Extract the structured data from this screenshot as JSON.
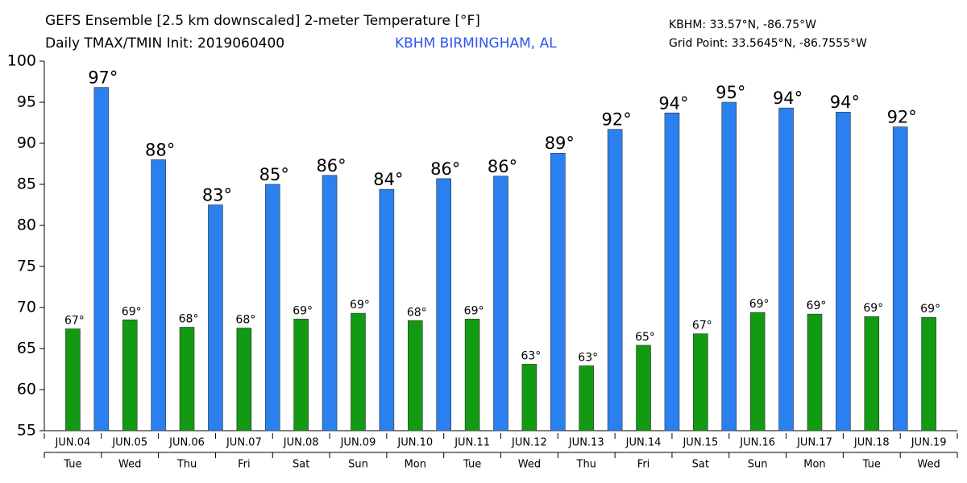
{
  "chart_data": {
    "type": "bar",
    "title": "GEFS Ensemble [2.5 km downscaled] 2-meter Temperature [°F]",
    "subtitle": "Daily TMAX/TMIN Init: 2019060400",
    "location": "KBHM BIRMINGHAM, AL",
    "annotations": [
      "KBHM: 33.57°N, -86.75°W",
      "Grid Point: 33.5645°N, -86.7555°W"
    ],
    "categories": [
      "JUN.04",
      "JUN.05",
      "JUN.06",
      "JUN.07",
      "JUN.08",
      "JUN.09",
      "JUN.10",
      "JUN.11",
      "JUN.12",
      "JUN.13",
      "JUN.14",
      "JUN.15",
      "JUN.16",
      "JUN.17",
      "JUN.18",
      "JUN.19"
    ],
    "weekdays": [
      "Tue",
      "Wed",
      "Thu",
      "Fri",
      "Sat",
      "Sun",
      "Mon",
      "Tue",
      "Wed",
      "Thu",
      "Fri",
      "Sat",
      "Sun",
      "Mon",
      "Tue",
      "Wed"
    ],
    "series": [
      {
        "color": "#2b80ef",
        "values": [
          96.8,
          88.0,
          82.5,
          85.0,
          86.1,
          84.4,
          85.7,
          86.0,
          88.8,
          91.7,
          93.7,
          95.0,
          94.3,
          93.8,
          92.0,
          null
        ],
        "value_labels": [
          "97°",
          "88°",
          "83°",
          "85°",
          "86°",
          "84°",
          "86°",
          "86°",
          "89°",
          "92°",
          "94°",
          "95°",
          "94°",
          "94°",
          "92°",
          null
        ]
      },
      {
        "color": "#129a12",
        "values": [
          67.4,
          68.5,
          67.6,
          67.5,
          68.6,
          69.3,
          68.4,
          68.6,
          63.1,
          62.9,
          65.4,
          66.8,
          69.4,
          69.2,
          68.9,
          68.8
        ],
        "value_labels": [
          "67°",
          "69°",
          "68°",
          "68°",
          "69°",
          "69°",
          "68°",
          "69°",
          "63°",
          "63°",
          "65°",
          "67°",
          "69°",
          "69°",
          "69°",
          "69°"
        ]
      }
    ],
    "ylim": [
      55,
      100
    ],
    "yticks": [
      55,
      60,
      65,
      70,
      75,
      80,
      85,
      90,
      95,
      100
    ]
  }
}
